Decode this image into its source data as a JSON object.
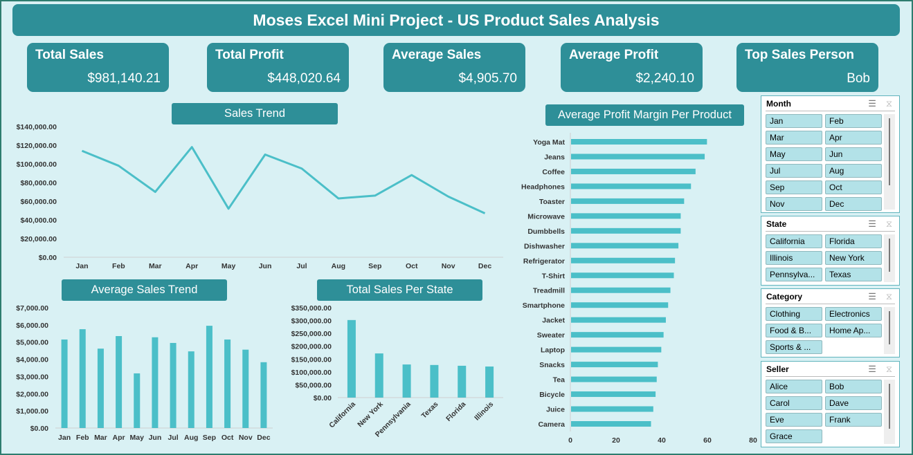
{
  "title": "Moses Excel Mini Project - US Product Sales Analysis",
  "kpis": [
    {
      "label": "Total Sales",
      "value": "$981,140.21"
    },
    {
      "label": "Total Profit",
      "value": "$448,020.64"
    },
    {
      "label": "Average Sales",
      "value": "$4,905.70"
    },
    {
      "label": "Average Profit",
      "value": "$2,240.10"
    },
    {
      "label": "Top Sales Person",
      "value": "Bob"
    }
  ],
  "slicers": [
    {
      "title": "Month",
      "items": [
        "Jan",
        "Feb",
        "Mar",
        "Apr",
        "May",
        "Jun",
        "Jul",
        "Aug",
        "Sep",
        "Oct",
        "Nov",
        "Dec"
      ]
    },
    {
      "title": "State",
      "items": [
        "California",
        "Florida",
        "Illinois",
        "New York",
        "Pennsylva...",
        "Texas"
      ]
    },
    {
      "title": "Category",
      "items": [
        "Clothing",
        "Electronics",
        "Food & B...",
        "Home Ap...",
        "Sports & ..."
      ]
    },
    {
      "title": "Seller",
      "items": [
        "Alice",
        "Bob",
        "Carol",
        "Dave",
        "Eve",
        "Frank",
        "Grace"
      ]
    }
  ],
  "colors": {
    "accent": "#2e8f98",
    "series": "#4bbfc8",
    "background": "#d9f1f4"
  },
  "chart_data": [
    {
      "type": "line",
      "title": "Sales Trend",
      "categories": [
        "Jan",
        "Feb",
        "Mar",
        "Apr",
        "May",
        "Jun",
        "Jul",
        "Aug",
        "Sep",
        "Oct",
        "Nov",
        "Dec"
      ],
      "values": [
        114000,
        98000,
        70000,
        118000,
        52000,
        110000,
        95000,
        63000,
        66000,
        88000,
        65000,
        47000
      ],
      "yticks": [
        "$0.00",
        "$20,000.00",
        "$40,000.00",
        "$60,000.00",
        "$80,000.00",
        "$100,000.00",
        "$120,000.00",
        "$140,000.00"
      ],
      "ylim": [
        0,
        140000
      ]
    },
    {
      "type": "bar",
      "title": "Average Sales Trend",
      "categories": [
        "Jan",
        "Feb",
        "Mar",
        "Apr",
        "May",
        "Jun",
        "Jul",
        "Aug",
        "Sep",
        "Oct",
        "Nov",
        "Dec"
      ],
      "values": [
        5150,
        5750,
        4620,
        5350,
        3180,
        5280,
        4950,
        4460,
        5950,
        5150,
        4560,
        3830
      ],
      "yticks": [
        "$0.00",
        "$1,000.00",
        "$2,000.00",
        "$3,000.00",
        "$4,000.00",
        "$5,000.00",
        "$6,000.00",
        "$7,000.00"
      ],
      "ylim": [
        0,
        7000
      ]
    },
    {
      "type": "bar",
      "title": "Total Sales Per State",
      "categories": [
        "California",
        "New York",
        "Pennsylvania",
        "Texas",
        "Florida",
        "Illinois"
      ],
      "values": [
        302000,
        172000,
        129000,
        127000,
        124000,
        121000
      ],
      "yticks": [
        "$0.00",
        "$50,000.00",
        "$100,000.00",
        "$150,000.00",
        "$200,000.00",
        "$250,000.00",
        "$300,000.00",
        "$350,000.00"
      ],
      "ylim": [
        0,
        350000
      ]
    },
    {
      "type": "bar",
      "orientation": "horizontal",
      "title": "Average Profit Margin Per Product",
      "categories": [
        "Yoga Mat",
        "Jeans",
        "Coffee",
        "Headphones",
        "Toaster",
        "Microwave",
        "Dumbbells",
        "Dishwasher",
        "Refrigerator",
        "T-Shirt",
        "Treadmill",
        "Smartphone",
        "Jacket",
        "Sweater",
        "Laptop",
        "Snacks",
        "Tea",
        "Bicycle",
        "Juice",
        "Camera"
      ],
      "values": [
        59.5,
        58.5,
        54.5,
        52.5,
        49.5,
        48,
        48,
        47,
        45.5,
        45,
        43.5,
        42.5,
        41.5,
        40.5,
        39.5,
        38,
        37.5,
        37,
        36,
        35
      ],
      "xticks": [
        "0",
        "20",
        "40",
        "60",
        "80"
      ],
      "xlim": [
        0,
        80
      ]
    }
  ]
}
